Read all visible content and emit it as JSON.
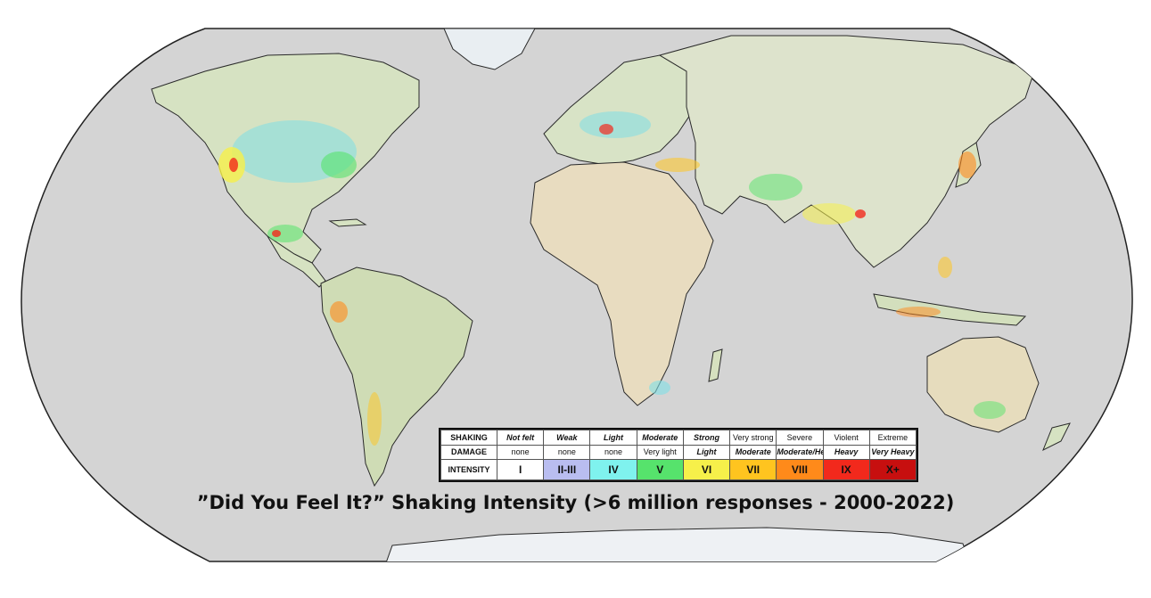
{
  "legend": {
    "rows": [
      {
        "label": "SHAKING",
        "cells": [
          "Not felt",
          "Weak",
          "Light",
          "Moderate",
          "Strong",
          "Very strong",
          "Severe",
          "Violent",
          "Extreme"
        ]
      },
      {
        "label": "DAMAGE",
        "cells": [
          "none",
          "none",
          "none",
          "Very light",
          "Light",
          "Moderate",
          "Moderate/Heavy",
          "Heavy",
          "Very Heavy"
        ]
      },
      {
        "label": "INTENSITY",
        "cells": [
          "I",
          "II-III",
          "IV",
          "V",
          "VI",
          "VII",
          "VIII",
          "IX",
          "X+"
        ]
      }
    ],
    "intensity_colors": [
      "#ffffff",
      "#b9bdf0",
      "#7ff2ee",
      "#56e36c",
      "#f6f04a",
      "#ffc41f",
      "#ff8a1a",
      "#f2291c",
      "#c70f0f"
    ]
  },
  "caption": "”Did You Feel It?” Shaking Intensity (>6 million responses - 2000-2022)",
  "colors": {
    "ocean": "#d4d4d4",
    "land": "#dfe4cf",
    "border": "#2a2a2a"
  }
}
